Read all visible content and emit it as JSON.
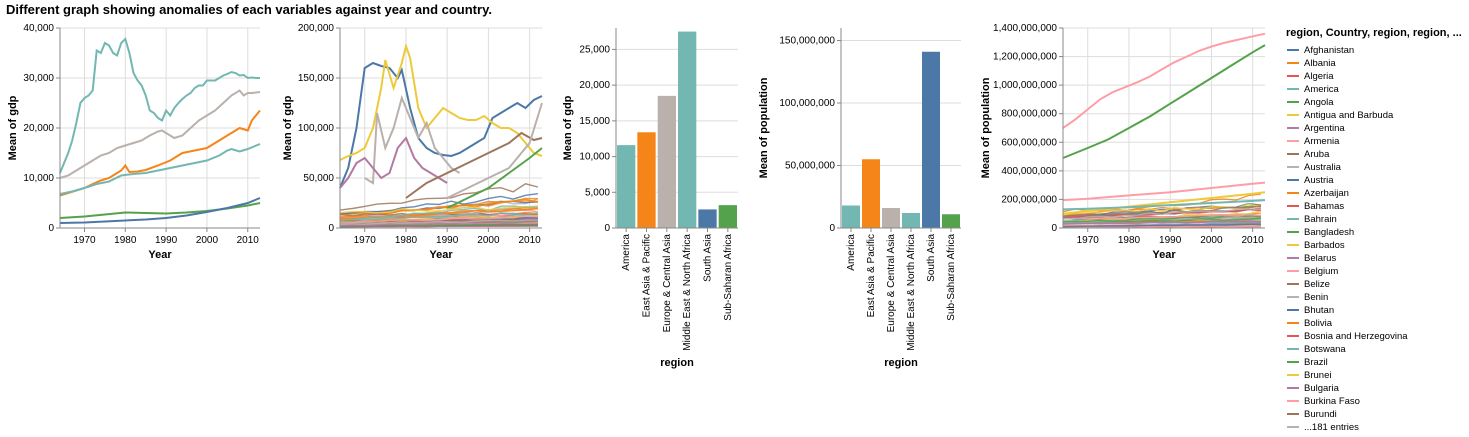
{
  "page": {
    "title": "Different graph showing anomalies of each variables against year and country."
  },
  "colors": [
    "#4c78a8",
    "#f58518",
    "#e45756",
    "#72b7b2",
    "#54a24b",
    "#eeca3b",
    "#b279a2",
    "#ff9da6",
    "#9d755d",
    "#bab0ac"
  ],
  "chart_data": [
    {
      "type": "line",
      "title": "",
      "xlabel": "Year",
      "ylabel": "Mean of gdp",
      "xlim": [
        1964,
        2013
      ],
      "ylim": [
        0,
        40000
      ],
      "xticks": [
        1970,
        1980,
        1990,
        2000,
        2010
      ],
      "yticks": [
        0,
        10000,
        20000,
        30000,
        40000
      ],
      "series": [
        {
          "color": "#72b7b2",
          "x": [
            1964,
            1965,
            1966,
            1967,
            1968,
            1969,
            1970,
            1971,
            1972,
            1973,
            1974,
            1975,
            1976,
            1977,
            1978,
            1979,
            1980,
            1981,
            1982,
            1983,
            1984,
            1985,
            1986,
            1987,
            1988,
            1989,
            1990,
            1991,
            1992,
            1993,
            1994,
            1995,
            1996,
            1997,
            1998,
            1999,
            2000,
            2001,
            2002,
            2003,
            2004,
            2005,
            2006,
            2007,
            2008,
            2009,
            2010,
            2011,
            2012,
            2013
          ],
          "y": [
            11000,
            13000,
            15000,
            17500,
            21000,
            25000,
            26000,
            26500,
            27500,
            35500,
            35000,
            37000,
            36500,
            35000,
            34500,
            37000,
            37800,
            35000,
            31000,
            29500,
            28500,
            26500,
            23500,
            23000,
            22000,
            21500,
            23500,
            22500,
            24000,
            25000,
            25800,
            26500,
            27000,
            28000,
            28500,
            28500,
            29500,
            29500,
            29500,
            30000,
            30500,
            30800,
            31200,
            31000,
            30500,
            30600,
            30000,
            30100,
            30000,
            30000
          ]
        },
        {
          "color": "#bab0ac",
          "x": [
            1964,
            1966,
            1968,
            1970,
            1972,
            1974,
            1976,
            1978,
            1980,
            1982,
            1984,
            1986,
            1988,
            1989,
            1990,
            1992,
            1994,
            1996,
            1998,
            2000,
            2002,
            2004,
            2006,
            2008,
            2009,
            2010,
            2011,
            2013
          ],
          "y": [
            10000,
            10500,
            11500,
            12500,
            13500,
            14500,
            15000,
            16000,
            16500,
            17000,
            17500,
            18500,
            19300,
            19500,
            19000,
            18000,
            18500,
            20000,
            21500,
            22500,
            23500,
            25000,
            26500,
            27500,
            26500,
            27000,
            27000,
            27200
          ]
        },
        {
          "color": "#f58518",
          "x": [
            1964,
            1966,
            1968,
            1970,
            1972,
            1974,
            1976,
            1978,
            1979,
            1980,
            1981,
            1983,
            1985,
            1988,
            1991,
            1994,
            1997,
            2000,
            2003,
            2006,
            2008,
            2010,
            2011,
            2013
          ],
          "y": [
            6500,
            7000,
            7500,
            8000,
            8800,
            9500,
            10000,
            11000,
            11500,
            12500,
            11200,
            11300,
            11600,
            12500,
            13500,
            15000,
            15500,
            16000,
            17500,
            19000,
            20000,
            19500,
            21500,
            23500
          ]
        },
        {
          "color": "#72b7b2",
          "x": [
            1964,
            1967,
            1970,
            1973,
            1976,
            1979,
            1982,
            1985,
            1988,
            1991,
            1994,
            1997,
            2000,
            2003,
            2005,
            2006,
            2008,
            2010,
            2013
          ],
          "y": [
            6800,
            7300,
            8000,
            8800,
            9300,
            10500,
            10800,
            11000,
            11500,
            12000,
            12500,
            13000,
            13500,
            14500,
            15500,
            15800,
            15300,
            15800,
            16800
          ]
        },
        {
          "color": "#54a24b",
          "x": [
            1964,
            1970,
            1975,
            1980,
            1985,
            1990,
            1995,
            2000,
            2005,
            2010,
            2013
          ],
          "y": [
            2000,
            2300,
            2700,
            3100,
            3000,
            2900,
            3100,
            3400,
            3900,
            4500,
            5000
          ]
        },
        {
          "color": "#4c78a8",
          "x": [
            1964,
            1970,
            1975,
            1980,
            1985,
            1990,
            1995,
            2000,
            2005,
            2010,
            2013
          ],
          "y": [
            1000,
            1100,
            1300,
            1500,
            1700,
            2000,
            2500,
            3200,
            4000,
            5000,
            6000
          ]
        }
      ]
    },
    {
      "type": "line",
      "title": "",
      "xlabel": "Year",
      "ylabel": "Mean of gdp",
      "xlim": [
        1964,
        2013
      ],
      "ylim": [
        0,
        200000
      ],
      "xticks": [
        1970,
        1980,
        1990,
        2000,
        2010
      ],
      "yticks": [
        0,
        50000,
        100000,
        150000,
        200000
      ],
      "noise_series": 60,
      "series": [
        {
          "color": "#4c78a8",
          "x": [
            1964,
            1966,
            1968,
            1970,
            1972,
            1974,
            1976,
            1978,
            1979,
            1981,
            1983,
            1985,
            1987,
            1989,
            1991,
            1993,
            1995,
            1997,
            1999,
            2001,
            2003,
            2005,
            2007,
            2009,
            2011,
            2013
          ],
          "y": [
            40000,
            60000,
            100000,
            160000,
            165000,
            162000,
            160000,
            150000,
            158000,
            120000,
            90000,
            80000,
            75000,
            73000,
            72000,
            75000,
            80000,
            85000,
            90000,
            110000,
            115000,
            120000,
            125000,
            120000,
            128000,
            132000
          ]
        },
        {
          "color": "#eeca3b",
          "x": [
            1964,
            1966,
            1968,
            1970,
            1972,
            1974,
            1975,
            1977,
            1979,
            1980,
            1981,
            1983,
            1985,
            1987,
            1989,
            1991,
            1993,
            1995,
            1997,
            1999,
            2001,
            2003,
            2005,
            2007,
            2009,
            2011,
            2013
          ],
          "y": [
            68000,
            72000,
            75000,
            80000,
            100000,
            140000,
            168000,
            140000,
            165000,
            182000,
            170000,
            120000,
            100000,
            110000,
            120000,
            115000,
            110000,
            108000,
            108000,
            112000,
            105000,
            100000,
            100000,
            95000,
            85000,
            75000,
            72000
          ]
        },
        {
          "color": "#bab0ac",
          "x": [
            1970,
            1972,
            1973,
            1975,
            1977,
            1979,
            1981,
            1983,
            1985,
            1987,
            1989,
            1991,
            1993
          ],
          "y": [
            50000,
            45000,
            115000,
            80000,
            100000,
            130000,
            110000,
            90000,
            105000,
            80000,
            70000,
            60000,
            55000
          ]
        },
        {
          "color": "#b279a2",
          "x": [
            1964,
            1966,
            1968,
            1970,
            1972,
            1974,
            1976,
            1978,
            1980,
            1982,
            1984,
            1986,
            1988,
            1990
          ],
          "y": [
            40000,
            50000,
            65000,
            70000,
            60000,
            50000,
            55000,
            80000,
            90000,
            70000,
            60000,
            55000,
            50000,
            45000
          ]
        },
        {
          "color": "#9d755d",
          "x": [
            1980,
            1985,
            1990,
            1995,
            2000,
            2005,
            2008,
            2011,
            2013
          ],
          "y": [
            30000,
            45000,
            55000,
            65000,
            75000,
            85000,
            95000,
            88000,
            90000
          ]
        },
        {
          "color": "#54a24b",
          "x": [
            1990,
            1995,
            2000,
            2005,
            2010,
            2013
          ],
          "y": [
            20000,
            30000,
            40000,
            55000,
            70000,
            80000
          ]
        },
        {
          "color": "#bab0ac",
          "x": [
            1990,
            1995,
            2000,
            2005,
            2010,
            2013
          ],
          "y": [
            30000,
            40000,
            50000,
            60000,
            85000,
            125000
          ]
        }
      ]
    },
    {
      "type": "bar",
      "title": "",
      "xlabel": "region",
      "ylabel": "Mean of gdp",
      "categories": [
        "America",
        "East Asia & Pacific",
        "Europe & Central Asia",
        "Middle East & North Africa",
        "South Asia",
        "Sub-Saharan Africa"
      ],
      "values": [
        11600,
        13400,
        18500,
        27500,
        2600,
        3200
      ],
      "colors": [
        "#72b7b2",
        "#f58518",
        "#bab0ac",
        "#72b7b2",
        "#4c78a8",
        "#54a24b"
      ],
      "ylim": [
        0,
        28000
      ],
      "yticks": [
        0,
        5000,
        10000,
        15000,
        20000,
        25000
      ]
    },
    {
      "type": "bar",
      "title": "",
      "xlabel": "region",
      "ylabel": "Mean of population",
      "categories": [
        "America",
        "East Asia & Pacific",
        "Europe & Central Asia",
        "Middle East & North Africa",
        "South Asia",
        "Sub-Saharan Africa"
      ],
      "values": [
        18000000,
        55000000,
        16000000,
        12000000,
        141000000,
        11000000
      ],
      "colors": [
        "#72b7b2",
        "#f58518",
        "#bab0ac",
        "#72b7b2",
        "#4c78a8",
        "#54a24b"
      ],
      "ylim": [
        0,
        160000000
      ],
      "yticks": [
        0,
        50000000,
        100000000,
        150000000
      ]
    },
    {
      "type": "line",
      "title": "",
      "xlabel": "Year",
      "ylabel": "Mean of population",
      "xlim": [
        1964,
        2013
      ],
      "ylim": [
        0,
        1400000000
      ],
      "xticks": [
        1970,
        1980,
        1990,
        2000,
        2010
      ],
      "yticks": [
        0,
        200000000,
        400000000,
        600000000,
        800000000,
        1000000000,
        1200000000,
        1400000000
      ],
      "noise_series": 40,
      "series": [
        {
          "color": "#ff9da6",
          "x": [
            1964,
            1967,
            1970,
            1973,
            1976,
            1979,
            1982,
            1985,
            1988,
            1991,
            1994,
            1997,
            2000,
            2003,
            2006,
            2009,
            2013
          ],
          "y": [
            700000000,
            760000000,
            830000000,
            900000000,
            950000000,
            985000000,
            1020000000,
            1060000000,
            1110000000,
            1160000000,
            1200000000,
            1240000000,
            1270000000,
            1295000000,
            1315000000,
            1335000000,
            1360000000
          ]
        },
        {
          "color": "#54a24b",
          "x": [
            1964,
            1970,
            1975,
            1980,
            1985,
            1990,
            1995,
            2000,
            2005,
            2010,
            2013
          ],
          "y": [
            490000000,
            560000000,
            620000000,
            700000000,
            780000000,
            870000000,
            960000000,
            1050000000,
            1140000000,
            1230000000,
            1280000000
          ]
        },
        {
          "color": "#ff9da6",
          "x": [
            1964,
            1970,
            1980,
            1990,
            2000,
            2010,
            2013
          ],
          "y": [
            195000000,
            205000000,
            228000000,
            250000000,
            280000000,
            310000000,
            318000000
          ]
        },
        {
          "color": "#eeca3b",
          "x": [
            1964,
            1970,
            1980,
            1990,
            2000,
            2010,
            2013
          ],
          "y": [
            100000000,
            120000000,
            150000000,
            180000000,
            210000000,
            240000000,
            250000000
          ]
        },
        {
          "color": "#72b7b2",
          "x": [
            1964,
            1970,
            1980,
            1990,
            2000,
            2010,
            2013
          ],
          "y": [
            130000000,
            135000000,
            145000000,
            160000000,
            175000000,
            190000000,
            195000000
          ]
        }
      ],
      "legend": {
        "title": "region, Country, region, region, ...",
        "position": "right",
        "more": "...181 entries",
        "entries": [
          {
            "label": "Afghanistan",
            "color": "#4c78a8"
          },
          {
            "label": "Albania",
            "color": "#f58518"
          },
          {
            "label": "Algeria",
            "color": "#e45756"
          },
          {
            "label": "America",
            "color": "#72b7b2"
          },
          {
            "label": "Angola",
            "color": "#54a24b"
          },
          {
            "label": "Antigua and Barbuda",
            "color": "#eeca3b"
          },
          {
            "label": "Argentina",
            "color": "#b279a2"
          },
          {
            "label": "Armenia",
            "color": "#ff9da6"
          },
          {
            "label": "Aruba",
            "color": "#9d755d"
          },
          {
            "label": "Australia",
            "color": "#bab0ac"
          },
          {
            "label": "Austria",
            "color": "#4c78a8"
          },
          {
            "label": "Azerbaijan",
            "color": "#f58518"
          },
          {
            "label": "Bahamas",
            "color": "#e45756"
          },
          {
            "label": "Bahrain",
            "color": "#72b7b2"
          },
          {
            "label": "Bangladesh",
            "color": "#54a24b"
          },
          {
            "label": "Barbados",
            "color": "#eeca3b"
          },
          {
            "label": "Belarus",
            "color": "#b279a2"
          },
          {
            "label": "Belgium",
            "color": "#ff9da6"
          },
          {
            "label": "Belize",
            "color": "#9d755d"
          },
          {
            "label": "Benin",
            "color": "#bab0ac"
          },
          {
            "label": "Bhutan",
            "color": "#4c78a8"
          },
          {
            "label": "Bolivia",
            "color": "#f58518"
          },
          {
            "label": "Bosnia and Herzegovina",
            "color": "#e45756"
          },
          {
            "label": "Botswana",
            "color": "#72b7b2"
          },
          {
            "label": "Brazil",
            "color": "#54a24b"
          },
          {
            "label": "Brunei",
            "color": "#eeca3b"
          },
          {
            "label": "Bulgaria",
            "color": "#b279a2"
          },
          {
            "label": "Burkina Faso",
            "color": "#ff9da6"
          },
          {
            "label": "Burundi",
            "color": "#9d755d"
          }
        ]
      }
    }
  ]
}
